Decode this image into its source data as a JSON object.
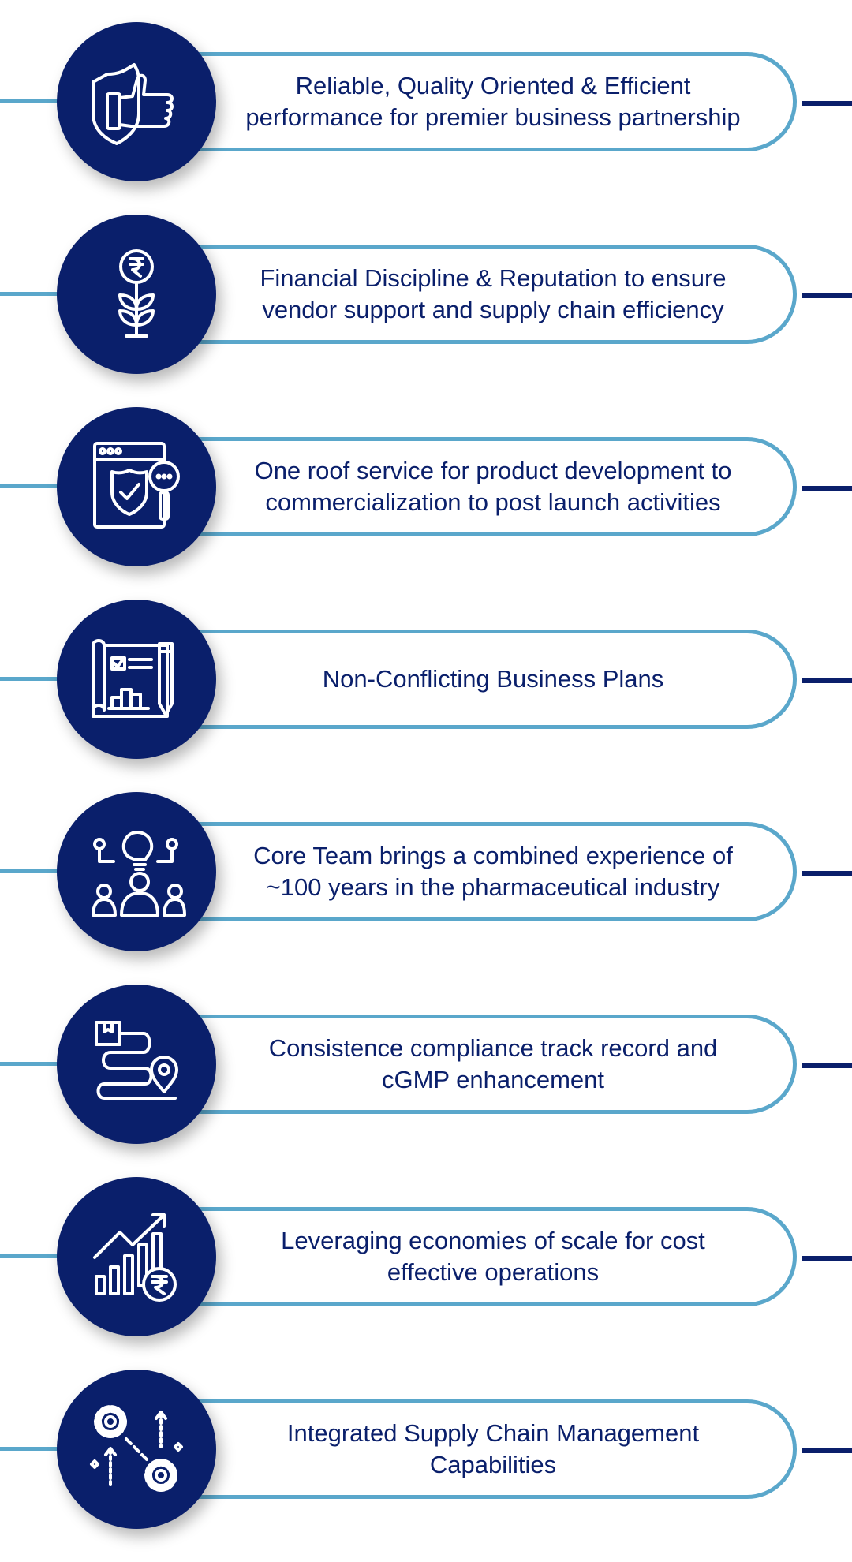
{
  "colors": {
    "navy": "#0a1f6b",
    "light_blue": "#5aa7cb",
    "background": "#ffffff"
  },
  "items": [
    {
      "icon": "thumbs-up-shield-icon",
      "text": "Reliable, Quality Oriented & Efficient\nperformance for premier business partnership"
    },
    {
      "icon": "rupee-plant-icon",
      "text": "Financial Discipline & Reputation to ensure\nvendor support and supply chain efficiency"
    },
    {
      "icon": "browser-shield-search-icon",
      "text": "One roof service for product development to\ncommercialization to post launch activities"
    },
    {
      "icon": "blueprint-plan-icon",
      "text": "Non-Conflicting Business Plans"
    },
    {
      "icon": "team-idea-icon",
      "text": "Core Team brings a combined experience of\n~100 years in the pharmaceutical industry"
    },
    {
      "icon": "delivery-route-icon",
      "text": "Consistence compliance track record and\ncGMP enhancement"
    },
    {
      "icon": "growth-chart-rupee-icon",
      "text": "Leveraging economies of scale for cost\neffective operations"
    },
    {
      "icon": "gears-chain-icon",
      "text": "Integrated Supply Chain Management\nCapabilities"
    }
  ]
}
